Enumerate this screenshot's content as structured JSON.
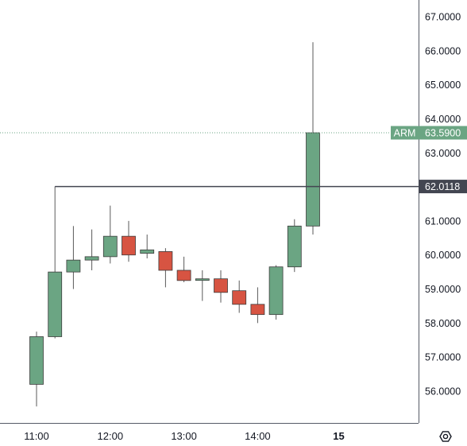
{
  "chart_data": {
    "type": "candlestick",
    "symbol": "ARM",
    "last_price": 63.59,
    "last_price_label": "63.5900",
    "horizontal_line": {
      "value": 62.0118,
      "label": "62.0118",
      "start_time": "11:15"
    },
    "ylim": [
      54.9,
      67.4
    ],
    "y_ticks": [
      "56.0000",
      "57.0000",
      "58.0000",
      "59.0000",
      "60.0000",
      "61.0000",
      "62.0000",
      "63.0000",
      "64.0000",
      "65.0000",
      "66.0000",
      "67.0000"
    ],
    "x_ticks": [
      "11:00",
      "12:00",
      "13:00",
      "14:00",
      "15"
    ],
    "candles": [
      {
        "time": "11:00",
        "open": 56.2,
        "high": 57.75,
        "low": 55.55,
        "close": 57.6
      },
      {
        "time": "11:15",
        "open": 57.6,
        "high": 62.0118,
        "low": 57.55,
        "close": 59.5
      },
      {
        "time": "11:30",
        "open": 59.5,
        "high": 60.85,
        "low": 59.0,
        "close": 59.85
      },
      {
        "time": "11:45",
        "open": 59.85,
        "high": 60.75,
        "low": 59.55,
        "close": 59.95
      },
      {
        "time": "12:00",
        "open": 59.95,
        "high": 61.45,
        "low": 59.75,
        "close": 60.55
      },
      {
        "time": "12:15",
        "open": 60.55,
        "high": 61.0,
        "low": 59.8,
        "close": 60.0
      },
      {
        "time": "12:30",
        "open": 60.05,
        "high": 60.6,
        "low": 59.9,
        "close": 60.15
      },
      {
        "time": "12:45",
        "open": 60.1,
        "high": 60.2,
        "low": 59.05,
        "close": 59.55
      },
      {
        "time": "13:00",
        "open": 59.55,
        "high": 59.95,
        "low": 59.2,
        "close": 59.25
      },
      {
        "time": "13:15",
        "open": 59.3,
        "high": 59.55,
        "low": 58.65,
        "close": 59.3
      },
      {
        "time": "13:30",
        "open": 59.3,
        "high": 59.55,
        "low": 58.6,
        "close": 58.9
      },
      {
        "time": "13:45",
        "open": 58.95,
        "high": 59.25,
        "low": 58.3,
        "close": 58.55
      },
      {
        "time": "14:00",
        "open": 58.55,
        "high": 59.05,
        "low": 58.0,
        "close": 58.25
      },
      {
        "time": "14:15",
        "open": 58.25,
        "high": 59.7,
        "low": 58.1,
        "close": 59.65
      },
      {
        "time": "14:30",
        "open": 59.65,
        "high": 61.05,
        "low": 59.5,
        "close": 60.85
      },
      {
        "time": "14:45",
        "open": 60.85,
        "high": 66.25,
        "low": 60.6,
        "close": 63.59
      }
    ],
    "colors": {
      "up": "#6ba583",
      "down": "#d75442",
      "wick": "#5a5a5a",
      "price_badge": "#6ba583",
      "line_badge": "#434651",
      "hline": "#434651",
      "last_price_line": "#6ba583",
      "axis": "#555a66"
    }
  },
  "toolbar": {
    "settings_icon": "gear-icon"
  }
}
